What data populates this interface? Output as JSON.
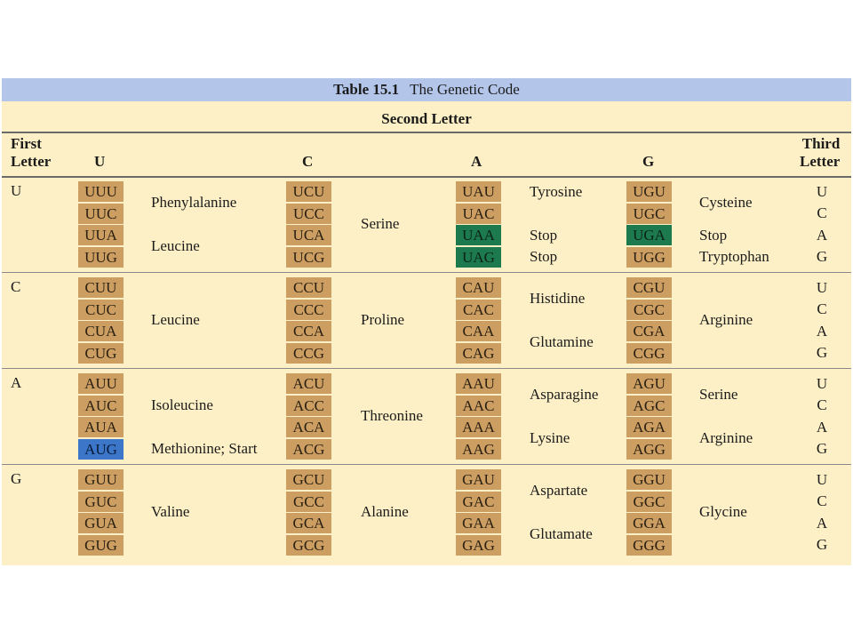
{
  "caption": {
    "number": "Table 15.1",
    "title": "The Genetic Code"
  },
  "second_letter_label": "Second Letter",
  "header": {
    "first_letter": [
      "First",
      "Letter"
    ],
    "columns": [
      "U",
      "C",
      "A",
      "G"
    ],
    "third_letter": [
      "Third",
      "Letter"
    ]
  },
  "colors": {
    "codon": "#cd9e62",
    "stop": "#1c7a4e",
    "start": "#3b76c9",
    "caption": "#b3c6ea",
    "background": "#fdf0c6"
  },
  "rows": [
    {
      "first": "U",
      "third": [
        "U",
        "C",
        "A",
        "G"
      ],
      "codons": [
        [
          "UUU",
          "UCU",
          "UAU",
          "UGU"
        ],
        [
          "UUC",
          "UCC",
          "UAC",
          "UGC"
        ],
        [
          "UUA",
          "UCA",
          "UAA",
          "UGA"
        ],
        [
          "UUG",
          "UCG",
          "UAG",
          "UGG"
        ]
      ],
      "amino": {
        "U": [
          "Phenylalanine",
          "Leucine"
        ],
        "C": [
          "Serine"
        ],
        "A": [
          "Tyrosine",
          "Stop",
          "Stop"
        ],
        "G": [
          "Cysteine",
          "Stop",
          "Tryptophan"
        ]
      }
    },
    {
      "first": "C",
      "third": [
        "U",
        "C",
        "A",
        "G"
      ],
      "codons": [
        [
          "CUU",
          "CCU",
          "CAU",
          "CGU"
        ],
        [
          "CUC",
          "CCC",
          "CAC",
          "CGC"
        ],
        [
          "CUA",
          "CCA",
          "CAA",
          "CGA"
        ],
        [
          "CUG",
          "CCG",
          "CAG",
          "CGG"
        ]
      ],
      "amino": {
        "U": [
          "Leucine"
        ],
        "C": [
          "Proline"
        ],
        "A": [
          "Histidine",
          "Glutamine"
        ],
        "G": [
          "Arginine"
        ]
      }
    },
    {
      "first": "A",
      "third": [
        "U",
        "C",
        "A",
        "G"
      ],
      "codons": [
        [
          "AUU",
          "ACU",
          "AAU",
          "AGU"
        ],
        [
          "AUC",
          "ACC",
          "AAC",
          "AGC"
        ],
        [
          "AUA",
          "ACA",
          "AAA",
          "AGA"
        ],
        [
          "AUG",
          "ACG",
          "AAG",
          "AGG"
        ]
      ],
      "amino": {
        "U": [
          "Isoleucine",
          "Methionine; Start"
        ],
        "C": [
          "Threonine"
        ],
        "A": [
          "Asparagine",
          "Lysine"
        ],
        "G": [
          "Serine",
          "Arginine"
        ]
      }
    },
    {
      "first": "G",
      "third": [
        "U",
        "C",
        "A",
        "G"
      ],
      "codons": [
        [
          "GUU",
          "GCU",
          "GAU",
          "GGU"
        ],
        [
          "GUC",
          "GCC",
          "GAC",
          "GGC"
        ],
        [
          "GUA",
          "GCA",
          "GAA",
          "GGA"
        ],
        [
          "GUG",
          "GCG",
          "GAG",
          "GGG"
        ]
      ],
      "amino": {
        "U": [
          "Valine"
        ],
        "C": [
          "Alanine"
        ],
        "A": [
          "Aspartate",
          "Glutamate"
        ],
        "G": [
          "Glycine"
        ]
      }
    }
  ]
}
